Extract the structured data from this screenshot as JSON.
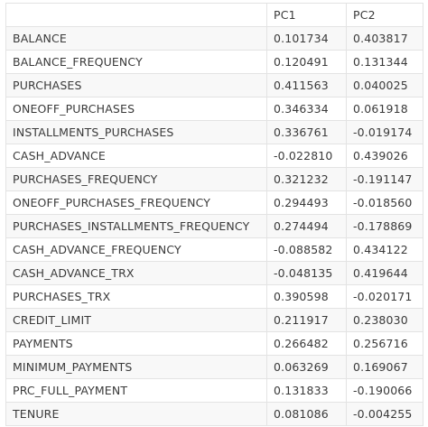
{
  "table": {
    "columns": [
      "",
      "PC1",
      "PC2"
    ],
    "rows": [
      {
        "label": "BALANCE",
        "pc1": "0.101734",
        "pc2": "0.403817"
      },
      {
        "label": "BALANCE_FREQUENCY",
        "pc1": "0.120491",
        "pc2": "0.131344"
      },
      {
        "label": "PURCHASES",
        "pc1": "0.411563",
        "pc2": "0.040025"
      },
      {
        "label": "ONEOFF_PURCHASES",
        "pc1": "0.346334",
        "pc2": "0.061918"
      },
      {
        "label": "INSTALLMENTS_PURCHASES",
        "pc1": "0.336761",
        "pc2": "-0.019174"
      },
      {
        "label": "CASH_ADVANCE",
        "pc1": "-0.022810",
        "pc2": "0.439026"
      },
      {
        "label": "PURCHASES_FREQUENCY",
        "pc1": "0.321232",
        "pc2": "-0.191147"
      },
      {
        "label": "ONEOFF_PURCHASES_FREQUENCY",
        "pc1": "0.294493",
        "pc2": "-0.018560"
      },
      {
        "label": "PURCHASES_INSTALLMENTS_FREQUENCY",
        "pc1": "0.274494",
        "pc2": "-0.178869"
      },
      {
        "label": "CASH_ADVANCE_FREQUENCY",
        "pc1": "-0.088582",
        "pc2": "0.434122"
      },
      {
        "label": "CASH_ADVANCE_TRX",
        "pc1": "-0.048135",
        "pc2": "0.419644"
      },
      {
        "label": "PURCHASES_TRX",
        "pc1": "0.390598",
        "pc2": "-0.020171"
      },
      {
        "label": "CREDIT_LIMIT",
        "pc1": "0.211917",
        "pc2": "0.238030"
      },
      {
        "label": "PAYMENTS",
        "pc1": "0.266482",
        "pc2": "0.256716"
      },
      {
        "label": "MINIMUM_PAYMENTS",
        "pc1": "0.063269",
        "pc2": "0.169067"
      },
      {
        "label": "PRC_FULL_PAYMENT",
        "pc1": "0.131833",
        "pc2": "-0.190066"
      },
      {
        "label": "TENURE",
        "pc1": "0.081086",
        "pc2": "-0.004255"
      }
    ]
  }
}
